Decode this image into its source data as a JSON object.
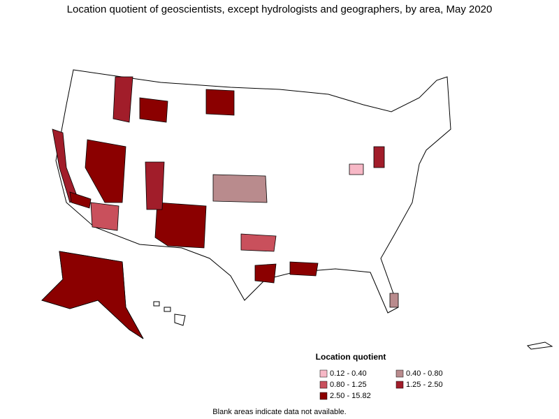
{
  "title": "Location quotient of geoscientists, except hydrologists and geographers, by area, May 2020",
  "legend": {
    "title": "Location quotient",
    "items": [
      {
        "label": "0.12 - 0.40",
        "color": "#f7b8c6"
      },
      {
        "label": "0.40 - 0.80",
        "color": "#b98b8d"
      },
      {
        "label": "0.80 - 1.25",
        "color": "#c9505c"
      },
      {
        "label": "1.25 - 2.50",
        "color": "#a11d2a"
      },
      {
        "label": "2.50 - 15.82",
        "color": "#8b0000"
      }
    ]
  },
  "note": "Blank areas indicate data not available."
}
